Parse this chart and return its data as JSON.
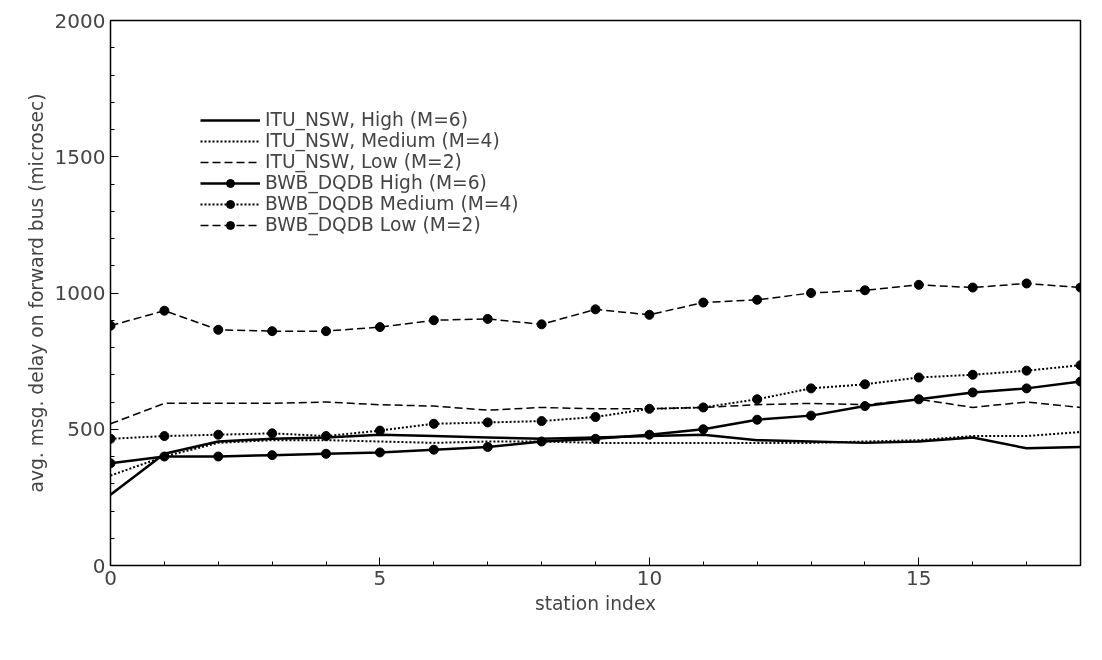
{
  "chart_data": {
    "type": "line",
    "xlabel": "station index",
    "ylabel": "avg. msg. delay on forward bus (microsec)",
    "x": [
      0,
      1,
      2,
      3,
      4,
      5,
      6,
      7,
      8,
      9,
      10,
      11,
      12,
      13,
      14,
      15,
      16,
      17,
      18
    ],
    "xlim": [
      0,
      18
    ],
    "xticks": [
      0,
      5,
      10,
      15
    ],
    "ylim": [
      0,
      2000
    ],
    "yticks": [
      0,
      500,
      1000,
      1500,
      2000
    ],
    "grid": false,
    "legend": "top left",
    "series": [
      {
        "name": "ITU_NSW, High (M=6)",
        "color": "#000000",
        "line_style": "solid",
        "marker": "none",
        "values": [
          260,
          410,
          455,
          465,
          470,
          480,
          475,
          470,
          465,
          470,
          475,
          480,
          460,
          455,
          450,
          455,
          470,
          430,
          435
        ]
      },
      {
        "name": "ITU_NSW, Medium (M=4)",
        "color": "#000000",
        "line_style": "dotted",
        "marker": "none",
        "values": [
          330,
          400,
          450,
          460,
          460,
          455,
          450,
          455,
          455,
          450,
          450,
          450,
          450,
          450,
          455,
          460,
          475,
          475,
          490
        ]
      },
      {
        "name": "ITU_NSW, Low (M=2)",
        "color": "#000000",
        "line_style": "dashed",
        "marker": "none",
        "values": [
          520,
          595,
          595,
          595,
          600,
          590,
          585,
          570,
          580,
          575,
          575,
          580,
          590,
          595,
          590,
          610,
          580,
          600,
          580
        ]
      },
      {
        "name": "BWB_DQDB High (M=6)",
        "color": "#000000",
        "line_style": "solid",
        "marker": "circle",
        "values": [
          375,
          400,
          400,
          405,
          410,
          415,
          425,
          435,
          455,
          465,
          480,
          500,
          535,
          550,
          585,
          610,
          635,
          650,
          675
        ]
      },
      {
        "name": "BWB_DQDB Medium (M=4)",
        "color": "#000000",
        "line_style": "dotted",
        "marker": "circle",
        "values": [
          465,
          475,
          480,
          485,
          475,
          495,
          520,
          525,
          530,
          545,
          575,
          580,
          610,
          650,
          665,
          690,
          700,
          715,
          735
        ]
      },
      {
        "name": "BWB_DQDB Low (M=2)",
        "color": "#000000",
        "line_style": "dashed",
        "marker": "circle",
        "values": [
          880,
          935,
          865,
          860,
          860,
          875,
          900,
          905,
          885,
          940,
          920,
          965,
          975,
          1000,
          1010,
          1030,
          1020,
          1035,
          1020
        ]
      }
    ]
  }
}
